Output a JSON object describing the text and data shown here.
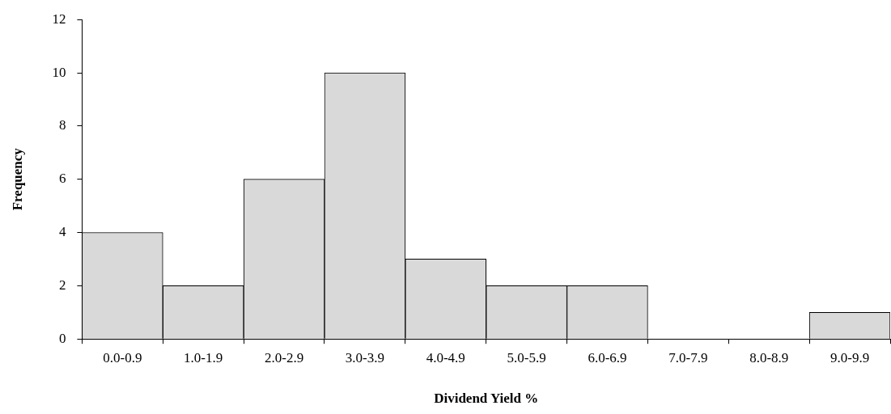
{
  "chart_data": {
    "type": "bar",
    "xlabel": "Dividend Yield %",
    "ylabel": "Frequency",
    "categories": [
      "0.0-0.9",
      "1.0-1.9",
      "2.0-2.9",
      "3.0-3.9",
      "4.0-4.9",
      "5.0-5.9",
      "6.0-6.9",
      "7.0-7.9",
      "8.0-8.9",
      "9.0-9.9"
    ],
    "values": [
      4,
      2,
      6,
      10,
      3,
      2,
      2,
      0,
      0,
      1
    ],
    "color": "#d9d9d9",
    "ylim": [
      0,
      12
    ],
    "yticks": [
      0,
      2,
      4,
      6,
      8,
      10,
      12
    ],
    "grid": false,
    "legend": false
  }
}
